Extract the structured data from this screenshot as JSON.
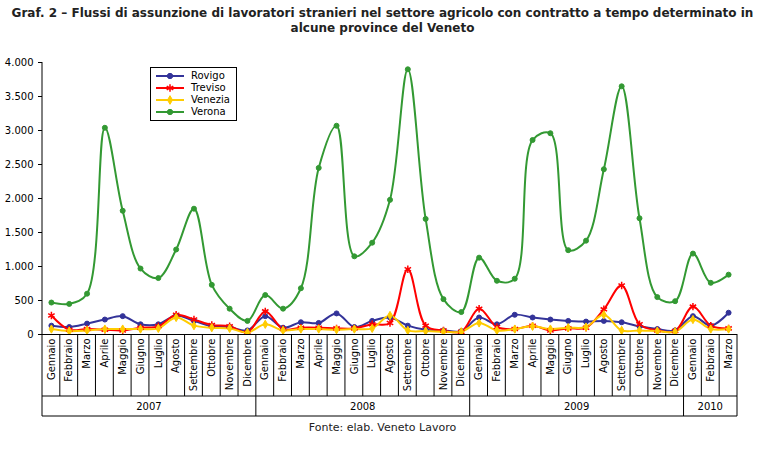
{
  "chart_data": {
    "type": "line",
    "title": "Graf. 2 – Flussi di assunzione di lavoratori stranieri nel settore agricolo con contratto a tempo determinato in alcune province del Veneto",
    "source": "Fonte: elab. Veneto Lavoro",
    "categories": [
      "Gennaio",
      "Febbraio",
      "Marzo",
      "Aprile",
      "Maggio",
      "Giugno",
      "Luglio",
      "Agosto",
      "Settembre",
      "Ottobre",
      "Novembre",
      "Dicembre",
      "Gennaio",
      "Febbraio",
      "Marzo",
      "Aprile",
      "Maggio",
      "Giugno",
      "Luglio",
      "Agosto",
      "Settembre",
      "Ottobre",
      "Novembre",
      "Dicembre",
      "Gennaio",
      "Febbraio",
      "Marzo",
      "Aprile",
      "Maggio",
      "Giugno",
      "Luglio",
      "Agosto",
      "Settembre",
      "Ottobre",
      "Novembre",
      "Dicembre",
      "Gennaio",
      "Febbraio",
      "Marzo"
    ],
    "x_groups": [
      {
        "label": "2007",
        "count": 12
      },
      {
        "label": "2008",
        "count": 12
      },
      {
        "label": "2009",
        "count": 12
      },
      {
        "label": "2010",
        "count": 3
      }
    ],
    "series": [
      {
        "name": "Rovigo",
        "color": "#333399",
        "marker": "circle",
        "values": [
          130,
          110,
          160,
          220,
          270,
          150,
          150,
          280,
          200,
          120,
          110,
          60,
          270,
          100,
          180,
          170,
          310,
          110,
          200,
          250,
          130,
          70,
          60,
          50,
          250,
          150,
          290,
          250,
          220,
          200,
          190,
          200,
          180,
          120,
          80,
          60,
          270,
          130,
          320
        ]
      },
      {
        "name": "Treviso",
        "color": "#ff0000",
        "marker": "asterisk",
        "values": [
          280,
          70,
          80,
          70,
          60,
          100,
          120,
          290,
          220,
          140,
          120,
          30,
          340,
          80,
          100,
          100,
          90,
          90,
          150,
          170,
          960,
          130,
          60,
          40,
          380,
          110,
          80,
          130,
          60,
          90,
          100,
          370,
          720,
          150,
          60,
          50,
          410,
          130,
          90
        ]
      },
      {
        "name": "Venezia",
        "color": "#ffcc00",
        "marker": "diamond",
        "values": [
          80,
          50,
          60,
          80,
          80,
          80,
          90,
          250,
          130,
          100,
          90,
          30,
          150,
          60,
          80,
          80,
          70,
          80,
          90,
          280,
          60,
          50,
          40,
          40,
          170,
          60,
          80,
          120,
          80,
          100,
          110,
          290,
          60,
          60,
          50,
          40,
          220,
          80,
          80
        ]
      },
      {
        "name": "Verona",
        "color": "#339933",
        "marker": "circle",
        "values": [
          470,
          450,
          600,
          3040,
          1820,
          970,
          830,
          1250,
          1850,
          730,
          380,
          200,
          580,
          380,
          680,
          2450,
          3070,
          1150,
          1350,
          1980,
          3900,
          1700,
          520,
          330,
          1130,
          790,
          820,
          2860,
          2960,
          1240,
          1380,
          2430,
          3650,
          1710,
          550,
          490,
          1190,
          760,
          880
        ]
      }
    ],
    "ylim": [
      0,
      4000
    ],
    "yticks": [
      0,
      500,
      {
        "value": 1000,
        "label": "1.000"
      },
      {
        "value": 1500,
        "label": "1.500"
      },
      {
        "value": 2000,
        "label": "2.000"
      },
      {
        "value": 2500,
        "label": "2.500"
      },
      {
        "value": 3000,
        "label": "3.000"
      },
      {
        "value": 3500,
        "label": "3.500"
      },
      {
        "value": 4000,
        "label": "4.000"
      }
    ],
    "grid": false,
    "legend": "top-left",
    "line_style": "smooth"
  }
}
